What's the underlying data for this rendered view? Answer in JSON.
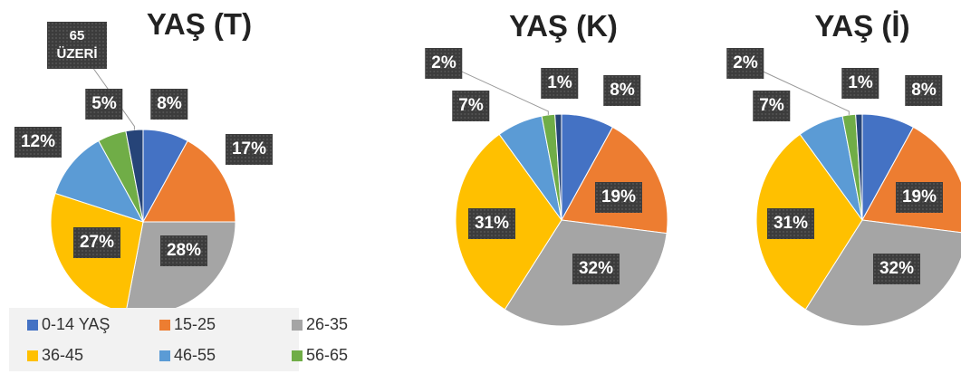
{
  "chart_data": [
    {
      "type": "pie",
      "title": "YAŞ (T)",
      "categories": [
        "0-14 YAŞ",
        "15-25",
        "26-35",
        "36-45",
        "46-55",
        "56-65",
        "65 ÜZERİ"
      ],
      "values": [
        8,
        17,
        28,
        27,
        12,
        5,
        3
      ],
      "value_labels": [
        "8%",
        "17%",
        "28%",
        "27%",
        "12%",
        "5%",
        null
      ],
      "colors": [
        "#4472c4",
        "#ed7d31",
        "#a5a5a5",
        "#ffc000",
        "#5b9bd5",
        "#70ad47",
        "#264478"
      ],
      "legend": "bottom"
    },
    {
      "type": "pie",
      "title": "YAŞ (K)",
      "values": [
        8,
        19,
        32,
        31,
        7,
        2,
        1
      ],
      "value_labels": [
        "8%",
        "19%",
        "32%",
        "31%",
        "7%",
        "2%",
        "1%"
      ],
      "colors": [
        "#4472c4",
        "#ed7d31",
        "#a5a5a5",
        "#ffc000",
        "#5b9bd5",
        "#70ad47",
        "#264478"
      ]
    },
    {
      "type": "pie",
      "title": "YAŞ (İ)",
      "values": [
        8,
        19,
        32,
        31,
        7,
        2,
        1
      ],
      "value_labels": [
        "8%",
        "19%",
        "32%",
        "31%",
        "7%",
        "2%",
        "1%"
      ],
      "colors": [
        "#4472c4",
        "#ed7d31",
        "#a5a5a5",
        "#ffc000",
        "#5b9bd5",
        "#70ad47",
        "#264478"
      ]
    }
  ]
}
